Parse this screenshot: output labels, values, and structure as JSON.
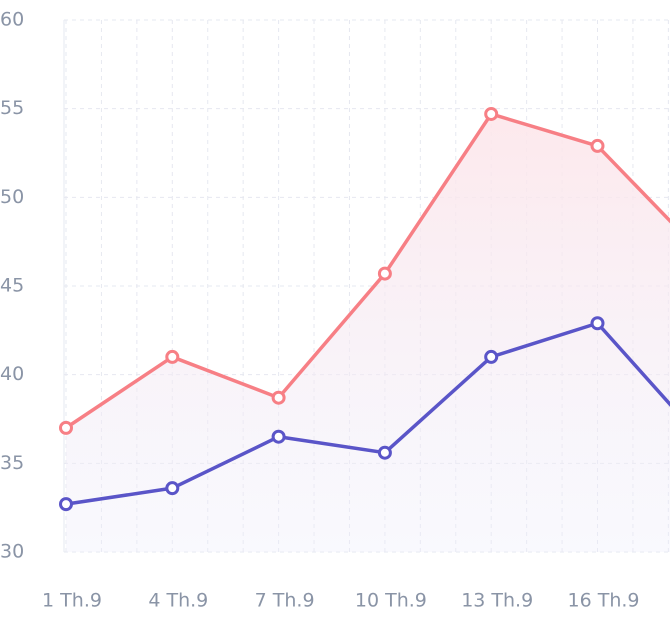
{
  "chart_data": {
    "type": "line",
    "categories": [
      "1 Th.9",
      "4 Th.9",
      "7 Th.9",
      "10 Th.9",
      "13 Th.9",
      "16 Th.9",
      null
    ],
    "series": [
      {
        "color": "#f77f85",
        "values": [
          37,
          41,
          38.7,
          45.7,
          54.7,
          52.9,
          46.7
        ]
      },
      {
        "color": "#5a55c8",
        "values": [
          32.7,
          33.6,
          36.5,
          35.6,
          41,
          42.9,
          36.2
        ]
      }
    ],
    "ylim": [
      30,
      60
    ],
    "yticks": [
      30,
      35,
      40,
      45,
      50,
      55,
      60
    ],
    "grid": true
  }
}
